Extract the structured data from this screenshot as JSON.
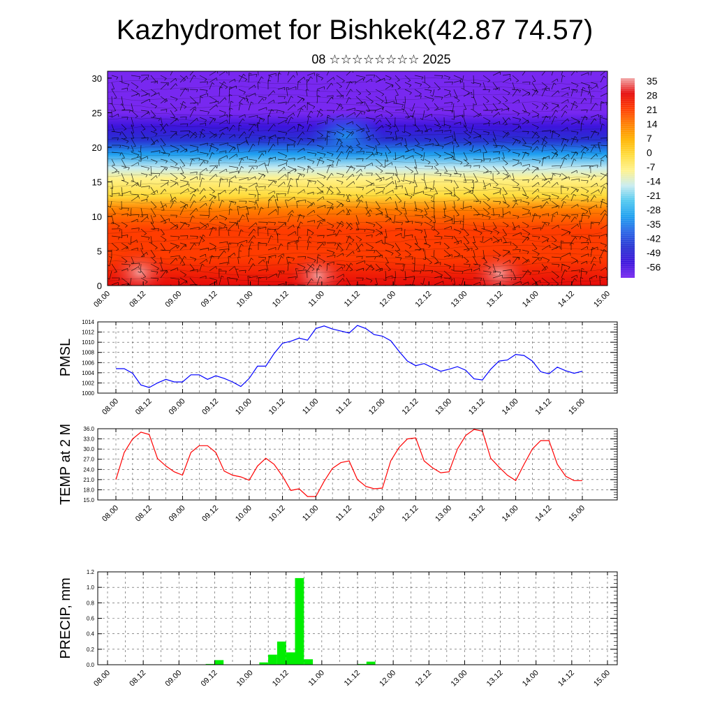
{
  "title": "Kazhydromet for Bishkek(42.87 74.57)",
  "subtitle": "08 ☆☆☆☆☆☆☆☆ 2025",
  "time_ticks": [
    "08.00",
    "08.12",
    "09.00",
    "09.12",
    "10.00",
    "10.12",
    "11.00",
    "11.12",
    "12.00",
    "12.12",
    "13.00",
    "13.12",
    "14.00",
    "14.12",
    "15.00"
  ],
  "chart_data": [
    {
      "type": "heatmap",
      "name": "temperature-cross-section",
      "ylim": [
        0,
        31
      ],
      "y_ticks": [
        0,
        5,
        10,
        15,
        20,
        25,
        30
      ],
      "colorbar": {
        "labels": [
          "35",
          "28",
          "21",
          "14",
          "7",
          "0",
          "-7",
          "-14",
          "-21",
          "-28",
          "-35",
          "-42",
          "-49",
          "-56"
        ],
        "stops": [
          {
            "value": 35,
            "color": "#f2a7a7"
          },
          {
            "value": 28,
            "color": "#e60a0a"
          },
          {
            "value": 21,
            "color": "#ff3c00"
          },
          {
            "value": 14,
            "color": "#ff7f00"
          },
          {
            "value": 7,
            "color": "#ffb400"
          },
          {
            "value": 0,
            "color": "#ffdc3c"
          },
          {
            "value": -7,
            "color": "#fff28c"
          },
          {
            "value": -14,
            "color": "#c8ecf0"
          },
          {
            "value": -21,
            "color": "#50c8f0"
          },
          {
            "value": -28,
            "color": "#1ea0f0"
          },
          {
            "value": -35,
            "color": "#2864e6"
          },
          {
            "value": -42,
            "color": "#2832d2"
          },
          {
            "value": -49,
            "color": "#3c14dc"
          },
          {
            "value": -56,
            "color": "#7828f0"
          }
        ]
      },
      "profile": [
        {
          "level": 0,
          "temp": 28
        },
        {
          "level": 4,
          "temp": 26
        },
        {
          "level": 8,
          "temp": 21
        },
        {
          "level": 11,
          "temp": 14
        },
        {
          "level": 13,
          "temp": 6
        },
        {
          "level": 15.5,
          "temp": -4
        },
        {
          "level": 17,
          "temp": -14
        },
        {
          "level": 19,
          "temp": -26
        },
        {
          "level": 21,
          "temp": -36
        },
        {
          "level": 23,
          "temp": -44
        },
        {
          "level": 25,
          "temp": -50
        },
        {
          "level": 28,
          "temp": -56
        },
        {
          "level": 31,
          "temp": -58
        }
      ]
    },
    {
      "type": "line",
      "name": "PMSL",
      "ylabel": "PMSL",
      "ylim": [
        1000,
        1014
      ],
      "y_ticks": [
        1000,
        1002,
        1004,
        1006,
        1008,
        1010,
        1012,
        1014
      ],
      "color": "#0000ff",
      "values": [
        1004.8,
        1004.8,
        1003.9,
        1001.6,
        1001.1,
        1002.0,
        1002.7,
        1002.2,
        1002.2,
        1003.6,
        1003.6,
        1002.7,
        1003.4,
        1002.9,
        1002.2,
        1001.3,
        1002.9,
        1005.3,
        1005.3,
        1007.8,
        1009.8,
        1010.2,
        1010.8,
        1010.4,
        1012.7,
        1013.2,
        1012.6,
        1012.2,
        1011.8,
        1013.3,
        1012.7,
        1011.5,
        1011.2,
        1010.3,
        1008.2,
        1006.3,
        1005.4,
        1005.8,
        1005.0,
        1004.3,
        1004.7,
        1005.2,
        1004.5,
        1002.8,
        1002.6,
        1004.7,
        1006.3,
        1006.5,
        1007.6,
        1007.4,
        1006.3,
        1004.2,
        1003.8,
        1005.1,
        1004.4,
        1003.9,
        1004.3
      ]
    },
    {
      "type": "line",
      "name": "TEMP at 2 M",
      "ylabel": "TEMP at 2 M",
      "ylim": [
        15,
        36
      ],
      "y_ticks": [
        "15.0",
        "18.0",
        "21.0",
        "24.0",
        "27.0",
        "30.0",
        "33.0",
        "36.0"
      ],
      "color": "#ff0000",
      "values": [
        21.0,
        29.0,
        33.0,
        35.0,
        34.3,
        27.2,
        25.0,
        23.3,
        22.3,
        29.0,
        31.0,
        31.0,
        29.0,
        23.5,
        22.3,
        21.8,
        20.8,
        25.0,
        27.3,
        25.5,
        22.0,
        17.8,
        18.3,
        16.0,
        16.0,
        20.5,
        24.3,
        26.0,
        26.5,
        21.0,
        19.0,
        18.3,
        18.5,
        26.5,
        30.5,
        33.0,
        33.3,
        26.5,
        24.5,
        23.0,
        23.3,
        30.0,
        34.0,
        35.8,
        35.3,
        27.3,
        24.7,
        22.3,
        20.7,
        25.5,
        30.0,
        32.5,
        32.5,
        25.5,
        22.0,
        20.7,
        20.7
      ]
    },
    {
      "type": "bar",
      "name": "PRECIP, mm",
      "ylabel": "PRECIP, mm",
      "ylim": [
        0,
        1.2
      ],
      "y_ticks": [
        "0.0",
        "0.2",
        "0.4",
        "0.6",
        "0.8",
        "1.0",
        "1.2"
      ],
      "color": "#00ee00",
      "values": [
        0,
        0,
        0,
        0,
        0,
        0,
        0,
        0,
        0,
        0,
        0,
        0.01,
        0.06,
        0,
        0,
        0,
        0,
        0.03,
        0.13,
        0.3,
        0.16,
        1.12,
        0.07,
        0,
        0,
        0,
        0,
        0,
        0.01,
        0.04,
        0,
        0,
        0,
        0,
        0,
        0,
        0,
        0,
        0,
        0,
        0,
        0,
        0,
        0,
        0,
        0,
        0,
        0,
        0,
        0,
        0,
        0,
        0,
        0,
        0,
        0,
        0
      ]
    }
  ]
}
